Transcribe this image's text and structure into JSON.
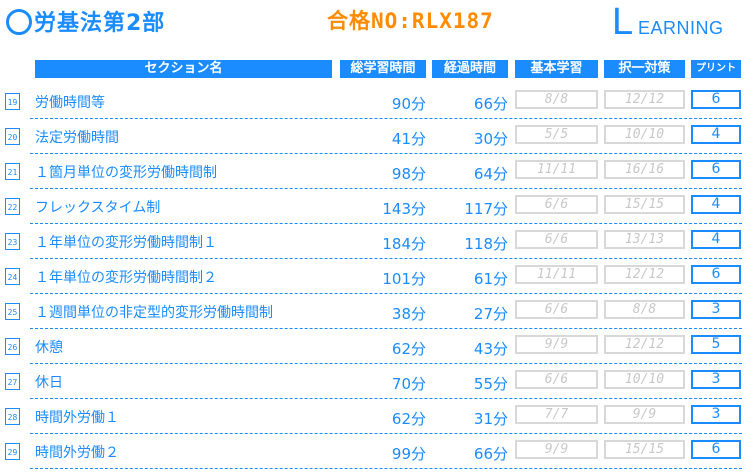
{
  "header": {
    "title": "労基法第2部",
    "pass_code": "合格NO:RLX187",
    "logo_initial": "L",
    "logo_rest": "EARNING"
  },
  "columns": {
    "section": "セクション名",
    "total_time": "総学習時間",
    "elapsed_time": "経過時間",
    "basic": "基本学習",
    "choice": "択一対策",
    "print": "プリント"
  },
  "rows": [
    {
      "no": "19",
      "name": "労働時間等",
      "total": "90分",
      "elapsed": "66分",
      "basic": "8/8",
      "choice": "12/12",
      "print": "6"
    },
    {
      "no": "20",
      "name": "法定労働時間",
      "total": "41分",
      "elapsed": "30分",
      "basic": "5/5",
      "choice": "10/10",
      "print": "4"
    },
    {
      "no": "21",
      "name": "１箇月単位の変形労働時間制",
      "total": "98分",
      "elapsed": "64分",
      "basic": "11/11",
      "choice": "16/16",
      "print": "6"
    },
    {
      "no": "22",
      "name": "フレックスタイム制",
      "total": "143分",
      "elapsed": "117分",
      "basic": "6/6",
      "choice": "15/15",
      "print": "4"
    },
    {
      "no": "23",
      "name": "１年単位の変形労働時間制１",
      "total": "184分",
      "elapsed": "118分",
      "basic": "6/6",
      "choice": "13/13",
      "print": "4"
    },
    {
      "no": "24",
      "name": "１年単位の変形労働時間制２",
      "total": "101分",
      "elapsed": "61分",
      "basic": "11/11",
      "choice": "12/12",
      "print": "6"
    },
    {
      "no": "25",
      "name": "１週間単位の非定型的変形労働時間制",
      "total": "38分",
      "elapsed": "27分",
      "basic": "6/6",
      "choice": "8/8",
      "print": "3"
    },
    {
      "no": "26",
      "name": "休憩",
      "total": "62分",
      "elapsed": "43分",
      "basic": "9/9",
      "choice": "12/12",
      "print": "5"
    },
    {
      "no": "27",
      "name": "休日",
      "total": "70分",
      "elapsed": "55分",
      "basic": "6/6",
      "choice": "10/10",
      "print": "3"
    },
    {
      "no": "28",
      "name": "時間外労働１",
      "total": "62分",
      "elapsed": "31分",
      "basic": "7/7",
      "choice": "9/9",
      "print": "3"
    },
    {
      "no": "29",
      "name": "時間外労働２",
      "total": "99分",
      "elapsed": "66分",
      "basic": "9/9",
      "choice": "15/15",
      "print": "6"
    }
  ],
  "colors": {
    "accent": "#1a8cff",
    "pass": "#ff8c00",
    "disabled": "#d8d8d8"
  }
}
